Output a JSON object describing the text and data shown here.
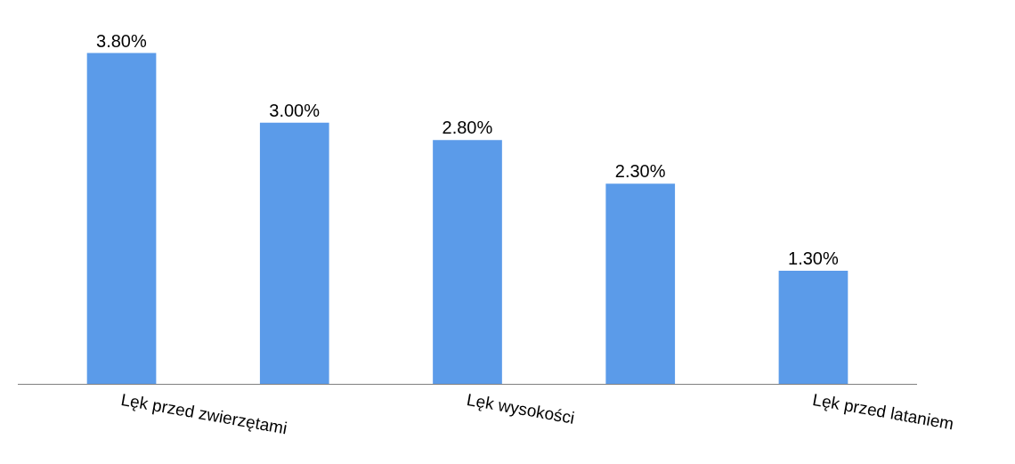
{
  "chart_data": {
    "type": "bar",
    "categories": [
      "Lęk przed zwierzętami",
      null,
      "Lęk wysokości",
      null,
      "Lęk przed lataniem"
    ],
    "values": [
      3.8,
      3.0,
      2.8,
      2.3,
      1.3
    ],
    "value_labels": [
      "3.80%",
      "3.00%",
      "2.80%",
      "2.30%",
      "1.30%"
    ],
    "color": "#5b9be9"
  }
}
